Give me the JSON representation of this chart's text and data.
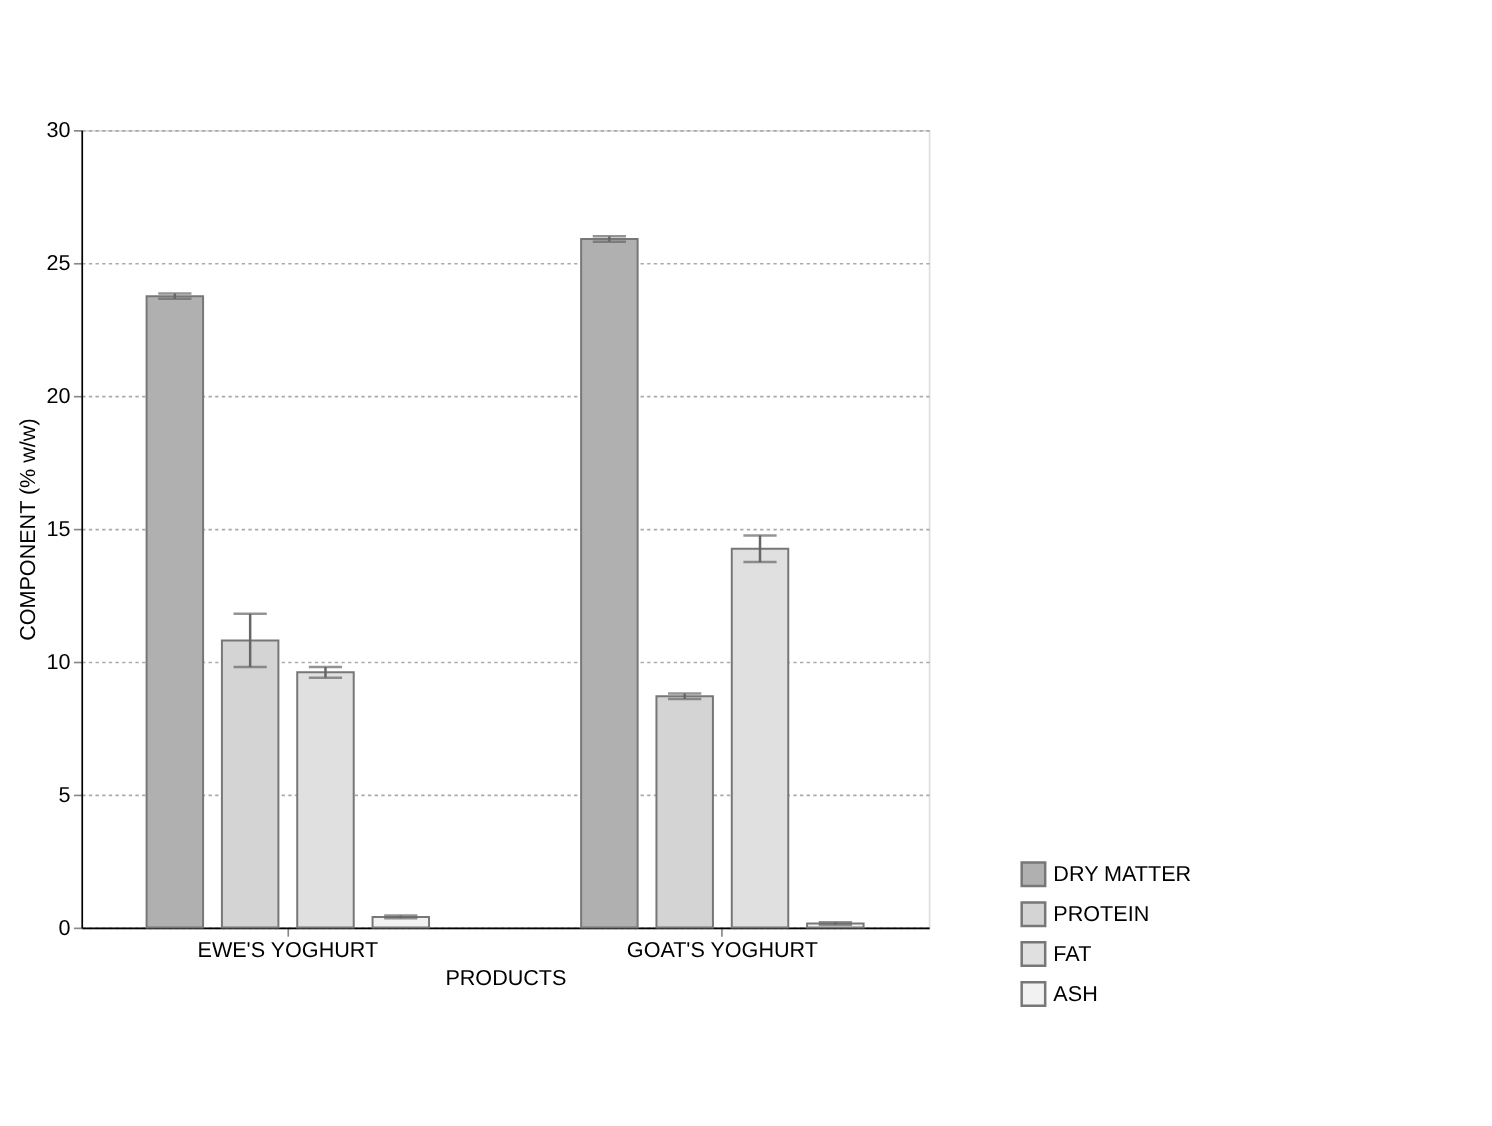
{
  "chart_data": {
    "type": "bar",
    "xlabel": "PRODUCTS",
    "ylabel": "COMPONENT (% w/w)",
    "categories": [
      "EWE'S YOGHURT",
      "GOAT'S YOGHURT"
    ],
    "series": [
      {
        "name": "DRY MATTER",
        "color": "#b0b0b0",
        "values": [
          23.75,
          25.9
        ],
        "errors": [
          0.1,
          0.1
        ]
      },
      {
        "name": "PROTEIN",
        "color": "#d4d4d4",
        "values": [
          10.8,
          8.7
        ],
        "errors": [
          1.0,
          0.1
        ]
      },
      {
        "name": "FAT",
        "color": "#e0e0e0",
        "values": [
          9.6,
          14.25
        ],
        "errors": [
          0.2,
          0.5
        ]
      },
      {
        "name": "ASH",
        "color": "#f2f2f2",
        "values": [
          0.4,
          0.15
        ],
        "errors": [
          0.05,
          0.05
        ]
      }
    ],
    "ylim": [
      0,
      30
    ],
    "yticks": [
      0,
      5,
      10,
      15,
      20,
      25,
      30
    ],
    "grid": "y",
    "legend": "bottom right"
  }
}
